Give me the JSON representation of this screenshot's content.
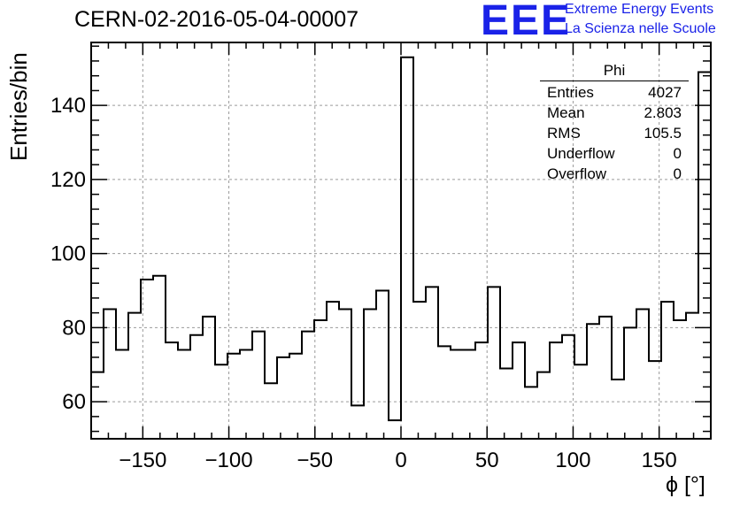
{
  "header": {
    "title": "CERN-02-2016-05-04-00007",
    "logo_text": "EEE",
    "logo_line1": "Extreme Energy Events",
    "logo_line2": "La Scienza nelle Scuole"
  },
  "stats": {
    "name": "Phi",
    "rows": [
      {
        "label": "Entries",
        "value": "4027"
      },
      {
        "label": "Mean",
        "value": "2.803"
      },
      {
        "label": "RMS",
        "value": "105.5"
      },
      {
        "label": "Underflow",
        "value": "0"
      },
      {
        "label": "Overflow",
        "value": "0"
      }
    ]
  },
  "colors": {
    "logo": "#1a22e8",
    "line": "#000000",
    "grid": "#9a9a9a"
  },
  "chart_data": {
    "type": "histogram",
    "xlabel": "ϕ [°]",
    "ylabel": "Entries/bin",
    "xlim": [
      -180,
      180
    ],
    "ylim": [
      50,
      157
    ],
    "grid": true,
    "x_ticks": [
      -150,
      -100,
      -50,
      0,
      50,
      100,
      150
    ],
    "x_tick_labels": [
      "−150",
      "−100",
      "−50",
      "0",
      "50",
      "100",
      "150"
    ],
    "y_ticks": [
      60,
      80,
      100,
      120,
      140
    ],
    "y_tick_labels": [
      "60",
      "80",
      "100",
      "120",
      "140"
    ],
    "bin_width": 7.2,
    "values": [
      68,
      85,
      74,
      84,
      93,
      94,
      76,
      74,
      78,
      83,
      70,
      73,
      74,
      79,
      65,
      72,
      73,
      79,
      82,
      87,
      85,
      59,
      85,
      90,
      55,
      153,
      87,
      91,
      75,
      74,
      74,
      76,
      91,
      69,
      76,
      64,
      68,
      76,
      78,
      70,
      81,
      83,
      66,
      80,
      85,
      71,
      87,
      82,
      84,
      149
    ]
  }
}
